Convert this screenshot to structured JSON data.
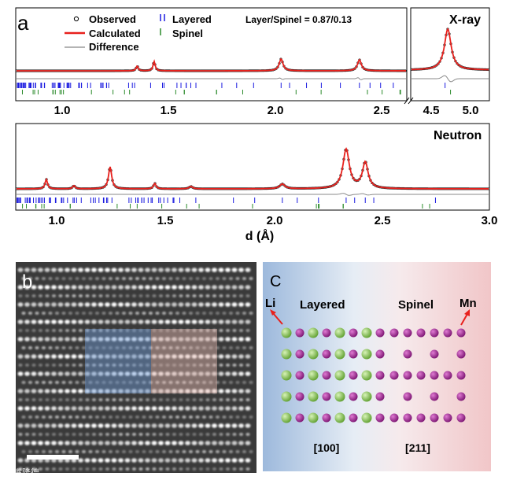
{
  "panel_a": {
    "label": "a",
    "legend": {
      "observed": "Observed",
      "calculated": "Calculated",
      "difference": "Difference",
      "layered": "Layered",
      "spinel": "Spinel"
    },
    "ratio": "Layer/Spinel = 0.87/0.13",
    "xray_title": "X-ray",
    "neutron_title": "Neutron",
    "xlabel": "d (Å)"
  },
  "panel_b": {
    "label": "b"
  },
  "panel_c": {
    "label": "C",
    "li": "Li",
    "mn": "Mn",
    "layered": "Layered",
    "spinel": "Spinel",
    "dir_left": "[100]",
    "dir_right": "[211]"
  },
  "watermark": "大嘴隆德",
  "colors": {
    "calculated": "#e8201c",
    "layered_ticks": "#1a1ae0",
    "spinel_ticks": "#2a8a2a",
    "li_atom": "#7cc443",
    "mn_atom": "#9b1d8f",
    "layered_bg": "#9db9dc",
    "spinel_bg": "#f1c6c8"
  },
  "chart_data": [
    {
      "type": "line",
      "title": "X-ray",
      "series": [
        {
          "name": "Observed"
        },
        {
          "name": "Calculated"
        },
        {
          "name": "Difference"
        },
        {
          "name": "Layered"
        },
        {
          "name": "Spinel"
        }
      ],
      "segments": [
        {
          "xlim": [
            0.78,
            2.62
          ],
          "xticks": [
            "1.0",
            "1.5",
            "2.0",
            "2.5"
          ]
        },
        {
          "xlim": [
            4.35,
            5.2
          ],
          "xticks": [
            "4.5",
            "5.0"
          ]
        }
      ],
      "peaks_d": [
        1.35,
        1.43,
        2.03,
        2.4,
        4.75
      ]
    },
    {
      "type": "line",
      "title": "Neutron",
      "xlabel": "d (Å)",
      "xlim": [
        0.78,
        3.0
      ],
      "xticks": [
        "1.0",
        "1.5",
        "2.0",
        "2.5",
        "3.0"
      ],
      "peaks_d": [
        0.92,
        1.05,
        1.22,
        1.43,
        1.6,
        2.03,
        2.33,
        2.42
      ]
    }
  ]
}
